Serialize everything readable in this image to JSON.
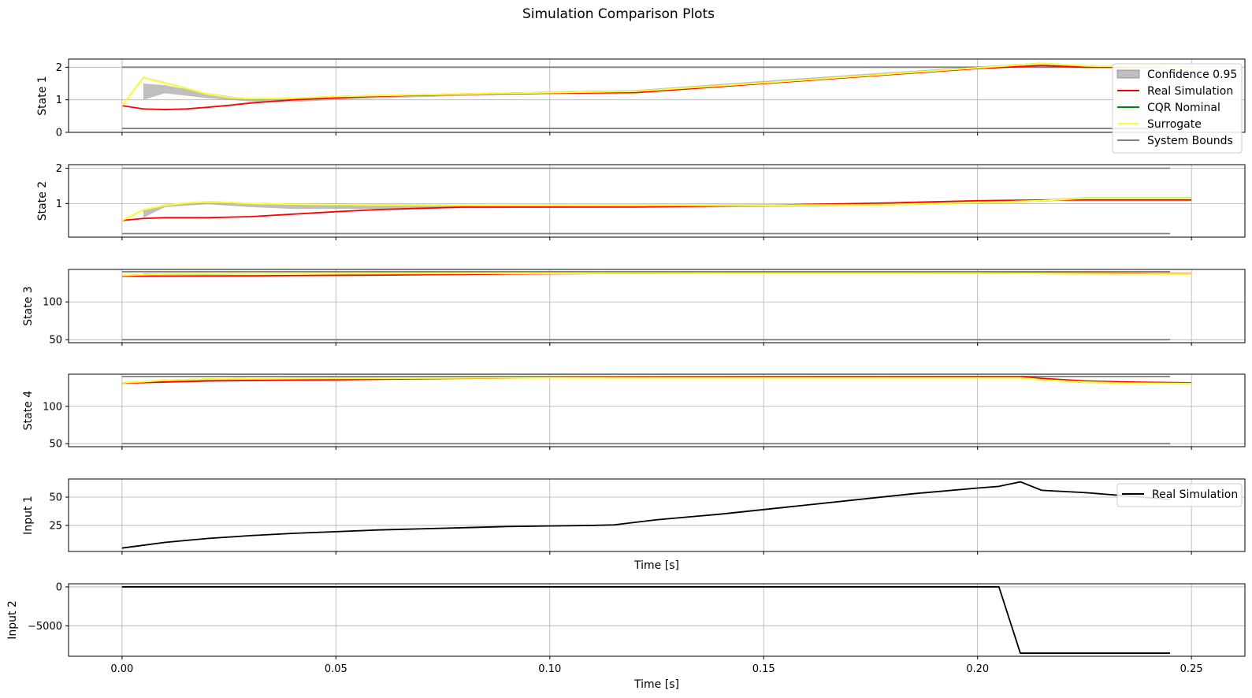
{
  "figure": {
    "title": "Simulation Comparison Plots"
  },
  "colors": {
    "real": "#ff0000",
    "cqr": "#008000",
    "surrogate": "#ffff33",
    "bounds": "#808080",
    "confidence": "#a9a9a9",
    "input": "#000000",
    "grid": "#b0b0b0"
  },
  "legends": {
    "states": {
      "placement": "upper-right",
      "entries": [
        {
          "label": "Confidence 0.95",
          "kind": "patch",
          "color_key": "confidence"
        },
        {
          "label": "Real Simulation",
          "kind": "line",
          "color_key": "real"
        },
        {
          "label": "CQR Nominal",
          "kind": "line",
          "color_key": "cqr"
        },
        {
          "label": "Surrogate",
          "kind": "line",
          "color_key": "surrogate"
        },
        {
          "label": "System Bounds",
          "kind": "line",
          "color_key": "bounds"
        }
      ]
    },
    "input1": {
      "placement": "upper-right",
      "entries": [
        {
          "label": "Real Simulation",
          "kind": "line",
          "color_key": "input"
        }
      ]
    }
  },
  "chart_data": [
    {
      "type": "line",
      "ylabel": "State 1",
      "xlim": [
        -0.0125,
        0.2625
      ],
      "ylim": [
        0,
        2.25
      ],
      "yticks": [
        0,
        1,
        2
      ],
      "grid": true,
      "shared_x": true,
      "series": [
        {
          "name": "Real Simulation",
          "color_key": "real",
          "x": [
            0,
            0.005,
            0.01,
            0.015,
            0.02,
            0.025,
            0.03,
            0.035,
            0.04,
            0.05,
            0.06,
            0.08,
            0.1,
            0.12,
            0.15,
            0.18,
            0.2,
            0.215,
            0.225,
            0.25
          ],
          "y": [
            0.82,
            0.72,
            0.7,
            0.72,
            0.77,
            0.83,
            0.9,
            0.95,
            1.0,
            1.06,
            1.11,
            1.17,
            1.2,
            1.22,
            1.5,
            1.78,
            1.96,
            2.05,
            2.0,
            2.0
          ]
        },
        {
          "name": "CQR Nominal",
          "color_key": "cqr",
          "x": [
            0,
            0.005,
            0.01,
            0.015,
            0.02,
            0.025,
            0.03,
            0.04,
            0.05,
            0.06,
            0.08,
            0.1,
            0.12,
            0.15,
            0.18,
            0.2,
            0.215,
            0.225,
            0.25
          ],
          "y": [
            0.82,
            1.68,
            1.52,
            1.35,
            1.17,
            1.07,
            1.03,
            1.05,
            1.1,
            1.13,
            1.18,
            1.22,
            1.26,
            1.52,
            1.8,
            1.98,
            2.12,
            2.04,
            2.0
          ]
        },
        {
          "name": "Surrogate",
          "color_key": "surrogate",
          "x": [
            0,
            0.005,
            0.01,
            0.015,
            0.02,
            0.025,
            0.03,
            0.04,
            0.05,
            0.06,
            0.08,
            0.1,
            0.12,
            0.15,
            0.18,
            0.2,
            0.215,
            0.225,
            0.25
          ],
          "y": [
            0.82,
            1.68,
            1.52,
            1.35,
            1.17,
            1.07,
            1.03,
            1.05,
            1.1,
            1.13,
            1.18,
            1.22,
            1.26,
            1.52,
            1.8,
            1.98,
            2.12,
            2.04,
            2.0
          ]
        },
        {
          "name": "System Bounds",
          "color_key": "bounds",
          "x": [
            0,
            0.245
          ],
          "y": [
            2.0,
            2.0
          ]
        },
        {
          "name": "System Bounds",
          "color_key": "bounds",
          "x": [
            0,
            0.245
          ],
          "y": [
            0.12,
            0.12
          ]
        }
      ],
      "confidence": {
        "x": [
          0.005,
          0.01,
          0.02,
          0.03,
          0.04,
          0.05,
          0.06,
          0.08,
          0.1,
          0.12,
          0.15,
          0.18,
          0.2,
          0.215,
          0.225
        ],
        "lower": [
          1.0,
          1.2,
          1.05,
          0.95,
          0.93,
          1.0,
          1.05,
          1.12,
          1.18,
          1.22,
          1.48,
          1.76,
          1.95,
          2.05,
          1.98
        ],
        "upper": [
          1.5,
          1.45,
          1.2,
          1.02,
          1.02,
          1.1,
          1.14,
          1.2,
          1.25,
          1.3,
          1.58,
          1.85,
          2.02,
          2.14,
          2.05
        ]
      }
    },
    {
      "type": "line",
      "ylabel": "State 2",
      "xlim": [
        -0.0125,
        0.2625
      ],
      "ylim": [
        0.05,
        2.1
      ],
      "yticks": [
        1,
        2
      ],
      "grid": true,
      "shared_x": true,
      "series": [
        {
          "name": "Real Simulation",
          "color_key": "real",
          "x": [
            0,
            0.005,
            0.01,
            0.02,
            0.03,
            0.04,
            0.05,
            0.06,
            0.08,
            0.1,
            0.12,
            0.15,
            0.18,
            0.2,
            0.215,
            0.225,
            0.25
          ],
          "y": [
            0.52,
            0.58,
            0.6,
            0.6,
            0.63,
            0.7,
            0.77,
            0.83,
            0.9,
            0.9,
            0.9,
            0.95,
            1.02,
            1.08,
            1.1,
            1.1,
            1.1
          ]
        },
        {
          "name": "CQR Nominal",
          "color_key": "cqr",
          "x": [
            0,
            0.005,
            0.01,
            0.015,
            0.02,
            0.025,
            0.03,
            0.04,
            0.06,
            0.1,
            0.15,
            0.18,
            0.2,
            0.215,
            0.225,
            0.25
          ],
          "y": [
            0.52,
            0.82,
            0.95,
            1.02,
            1.04,
            1.03,
            1.0,
            0.98,
            0.96,
            0.95,
            0.95,
            0.97,
            1.03,
            1.08,
            1.15,
            1.15
          ]
        },
        {
          "name": "Surrogate",
          "color_key": "surrogate",
          "x": [
            0,
            0.005,
            0.01,
            0.015,
            0.02,
            0.025,
            0.03,
            0.04,
            0.06,
            0.1,
            0.15,
            0.18,
            0.2,
            0.215,
            0.225,
            0.25
          ],
          "y": [
            0.52,
            0.82,
            0.95,
            1.02,
            1.04,
            1.03,
            1.0,
            0.98,
            0.96,
            0.95,
            0.95,
            0.97,
            1.03,
            1.08,
            1.15,
            1.15
          ]
        },
        {
          "name": "System Bounds",
          "color_key": "bounds",
          "x": [
            0,
            0.245
          ],
          "y": [
            2.0,
            2.0
          ]
        },
        {
          "name": "System Bounds",
          "color_key": "bounds",
          "x": [
            0,
            0.245
          ],
          "y": [
            0.15,
            0.15
          ]
        }
      ],
      "confidence": {
        "x": [
          0.005,
          0.01,
          0.02,
          0.03,
          0.04,
          0.06,
          0.1,
          0.15,
          0.18,
          0.2,
          0.215,
          0.225,
          0.25
        ],
        "lower": [
          0.6,
          0.9,
          0.98,
          0.9,
          0.85,
          0.85,
          0.88,
          0.9,
          0.95,
          1.0,
          1.05,
          1.12,
          1.12
        ],
        "upper": [
          0.82,
          0.97,
          1.06,
          1.02,
          1.0,
          0.97,
          0.96,
          0.98,
          1.0,
          1.06,
          1.12,
          1.18,
          1.18
        ]
      }
    },
    {
      "type": "line",
      "ylabel": "State 3",
      "xlim": [
        -0.0125,
        0.2625
      ],
      "ylim": [
        46,
        143
      ],
      "yticks": [
        50,
        100
      ],
      "grid": true,
      "shared_x": true,
      "series": [
        {
          "name": "Real Simulation",
          "color_key": "real",
          "x": [
            0,
            0.03,
            0.06,
            0.09,
            0.12,
            0.15,
            0.18,
            0.2,
            0.22,
            0.25
          ],
          "y": [
            134,
            134.5,
            135.5,
            137,
            138,
            138.3,
            138.3,
            138.3,
            138.2,
            137.5
          ]
        },
        {
          "name": "CQR Nominal",
          "color_key": "cqr",
          "x": [
            0,
            0.01,
            0.03,
            0.06,
            0.09,
            0.12,
            0.15,
            0.18,
            0.2,
            0.22,
            0.25
          ],
          "y": [
            135,
            137,
            137.2,
            137.5,
            137.8,
            138,
            138.1,
            138.1,
            138,
            137.5,
            137
          ]
        },
        {
          "name": "Surrogate",
          "color_key": "surrogate",
          "x": [
            0,
            0.01,
            0.03,
            0.06,
            0.09,
            0.12,
            0.15,
            0.18,
            0.2,
            0.22,
            0.25
          ],
          "y": [
            135,
            137,
            137.2,
            137.5,
            137.8,
            138,
            138.1,
            138.1,
            138,
            137.5,
            137
          ]
        },
        {
          "name": "System Bounds",
          "color_key": "bounds",
          "x": [
            0,
            0.245
          ],
          "y": [
            140,
            140
          ]
        },
        {
          "name": "System Bounds",
          "color_key": "bounds",
          "x": [
            0,
            0.245
          ],
          "y": [
            50,
            50
          ]
        }
      ],
      "confidence": {
        "x": [
          0.005,
          0.05,
          0.1,
          0.15,
          0.2,
          0.25
        ],
        "lower": [
          135.5,
          136.5,
          137.3,
          137.6,
          137.5,
          136.5
        ],
        "upper": [
          138,
          138.5,
          138.8,
          138.9,
          138.8,
          138
        ]
      }
    },
    {
      "type": "line",
      "ylabel": "State 4",
      "xlim": [
        -0.0125,
        0.2625
      ],
      "ylim": [
        46,
        143
      ],
      "yticks": [
        50,
        100
      ],
      "grid": true,
      "shared_x": true,
      "series": [
        {
          "name": "Real Simulation",
          "color_key": "real",
          "x": [
            0,
            0.01,
            0.02,
            0.05,
            0.08,
            0.1,
            0.12,
            0.15,
            0.18,
            0.21,
            0.215,
            0.225,
            0.235,
            0.25
          ],
          "y": [
            131,
            132.5,
            134,
            135.5,
            137.5,
            138.5,
            139,
            139.5,
            139.8,
            140,
            137.5,
            134,
            132.5,
            131.5
          ]
        },
        {
          "name": "CQR Nominal",
          "color_key": "cqr",
          "x": [
            0,
            0.005,
            0.01,
            0.02,
            0.03,
            0.05,
            0.08,
            0.1,
            0.15,
            0.2,
            0.21,
            0.215,
            0.225,
            0.235,
            0.25
          ],
          "y": [
            131.5,
            133,
            135,
            136.5,
            137.2,
            137.5,
            138,
            138.2,
            138.3,
            138.3,
            138.3,
            135.5,
            132.5,
            131,
            130.5
          ]
        },
        {
          "name": "Surrogate",
          "color_key": "surrogate",
          "x": [
            0,
            0.005,
            0.01,
            0.02,
            0.03,
            0.05,
            0.08,
            0.1,
            0.15,
            0.2,
            0.21,
            0.215,
            0.225,
            0.235,
            0.25
          ],
          "y": [
            131.5,
            133,
            135,
            136.5,
            137.2,
            137.5,
            138,
            138.2,
            138.3,
            138.3,
            138.3,
            135.5,
            132.5,
            131,
            130.5
          ]
        },
        {
          "name": "System Bounds",
          "color_key": "bounds",
          "x": [
            0,
            0.245
          ],
          "y": [
            140,
            140
          ]
        },
        {
          "name": "System Bounds",
          "color_key": "bounds",
          "x": [
            0,
            0.245
          ],
          "y": [
            50,
            50
          ]
        }
      ],
      "confidence": {
        "x": [
          0.005,
          0.05,
          0.1,
          0.15,
          0.21,
          0.225,
          0.25
        ],
        "lower": [
          131,
          136,
          137.2,
          137.5,
          137.5,
          131,
          129.5
        ],
        "upper": [
          134,
          138.5,
          139,
          139.2,
          139.2,
          134,
          132
        ]
      }
    },
    {
      "type": "line",
      "ylabel": "Input 1",
      "xlabel": "Time [s]",
      "xlim": [
        -0.0125,
        0.2625
      ],
      "ylim": [
        2,
        66
      ],
      "yticks": [
        25,
        50
      ],
      "grid": true,
      "series": [
        {
          "name": "Real Simulation",
          "color_key": "input",
          "x": [
            0,
            0.01,
            0.02,
            0.03,
            0.04,
            0.05,
            0.06,
            0.07,
            0.08,
            0.09,
            0.1,
            0.11,
            0.115,
            0.125,
            0.14,
            0.155,
            0.17,
            0.185,
            0.2,
            0.205,
            0.21,
            0.215,
            0.225,
            0.235,
            0.245
          ],
          "y": [
            5,
            10,
            13.5,
            16,
            18,
            19.5,
            21,
            22,
            23,
            24,
            24.5,
            25,
            25.5,
            30,
            35,
            41,
            47,
            53,
            58,
            59.5,
            63.5,
            56,
            54,
            51,
            48
          ]
        }
      ]
    },
    {
      "type": "line",
      "ylabel": "Input 2",
      "xlabel": "Time [s]",
      "xlim": [
        -0.0125,
        0.2625
      ],
      "ylim": [
        -8900,
        400
      ],
      "yticks": [
        -5000,
        0
      ],
      "xticks": [
        0.0,
        0.05,
        0.1,
        0.15,
        0.2,
        0.25
      ],
      "xticklabels": [
        "0.00",
        "0.05",
        "0.10",
        "0.15",
        "0.20",
        "0.25"
      ],
      "grid": true,
      "series": [
        {
          "name": "Input 2",
          "color_key": "input",
          "x": [
            0,
            0.05,
            0.1,
            0.15,
            0.2,
            0.205,
            0.21,
            0.245
          ],
          "y": [
            0,
            0,
            0,
            0,
            0,
            0,
            -8500,
            -8500
          ]
        }
      ]
    }
  ]
}
